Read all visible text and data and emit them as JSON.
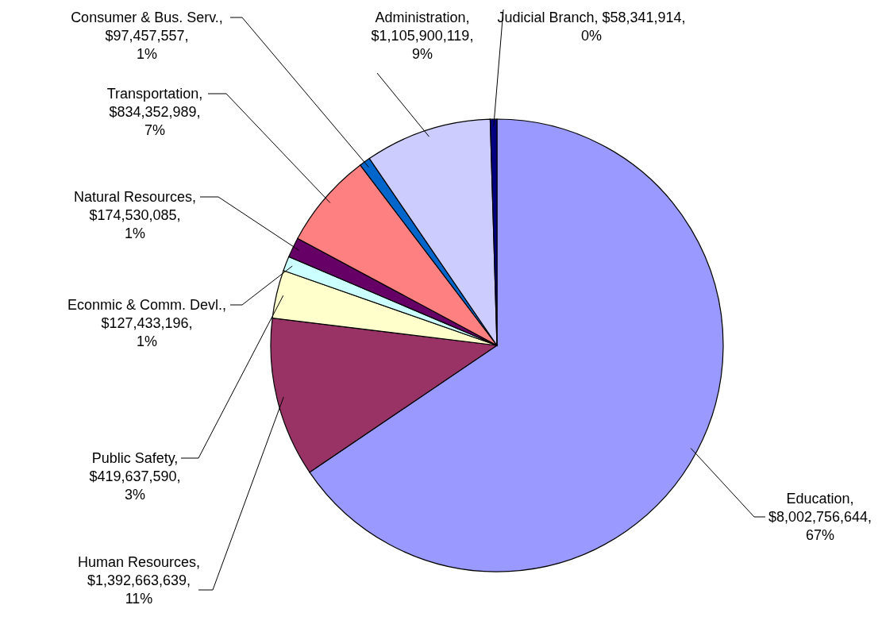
{
  "chart_data": {
    "type": "pie",
    "categories": [
      "Education",
      "Human Resources",
      "Public Safety",
      "Econmic & Comm. Devl.",
      "Natural Resources",
      "Transportation",
      "Consumer & Bus. Serv.",
      "Administration",
      "Judicial Branch"
    ],
    "values": [
      8002756644,
      1392663639,
      419637590,
      127433196,
      174530085,
      834352989,
      97457557,
      1105900119,
      58341914
    ],
    "colors": [
      "#9999ff",
      "#993366",
      "#ffffcc",
      "#ccffff",
      "#660066",
      "#ff8080",
      "#0066cc",
      "#ccccff",
      "#000080"
    ],
    "value_labels": [
      ", $8,002,756,644, 67%",
      ", $1,392,663,639, 11%",
      ", $419,637,590, 3%",
      ", $127,433,196, 1%",
      ", $174,530,085, 1%",
      ", $834,352,989, 7%",
      ", $97,457,557, 1%",
      ", $1,105,900,119, 9%",
      ", $58,341,914, 0%"
    ],
    "legend": false
  }
}
